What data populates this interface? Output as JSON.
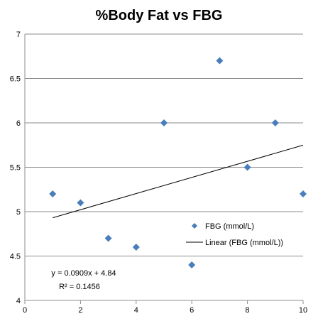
{
  "chart_data": {
    "type": "scatter",
    "title": "%Body Fat vs FBG",
    "xlabel": "",
    "ylabel": "",
    "xlim": [
      0,
      10
    ],
    "ylim": [
      4,
      7
    ],
    "x_ticks": [
      "0",
      "2",
      "4",
      "6",
      "8",
      "10"
    ],
    "y_ticks": [
      "4",
      "4.5",
      "5",
      "5.5",
      "6",
      "6.5",
      "7"
    ],
    "grid": "horizontal",
    "legend_position": "right-lower",
    "series": [
      {
        "name": "FBG (mmol/L)",
        "marker": "diamond",
        "color": "#4a7ebb",
        "points": [
          {
            "x": 1,
            "y": 5.2
          },
          {
            "x": 2,
            "y": 5.1
          },
          {
            "x": 3,
            "y": 4.7
          },
          {
            "x": 4,
            "y": 4.6
          },
          {
            "x": 5,
            "y": 6.0
          },
          {
            "x": 6,
            "y": 4.4
          },
          {
            "x": 7,
            "y": 6.7
          },
          {
            "x": 8,
            "y": 5.5
          },
          {
            "x": 9,
            "y": 6.0
          },
          {
            "x": 10,
            "y": 5.2
          }
        ]
      }
    ],
    "trendline": {
      "name": "Linear (FBG (mmol/L))",
      "slope": 0.0909,
      "intercept": 4.84,
      "x_range": [
        1,
        10
      ],
      "color": "#000000",
      "equation_label": "y = 0.0909x + 4.84",
      "r2_label": "R² = 0.1456"
    }
  }
}
